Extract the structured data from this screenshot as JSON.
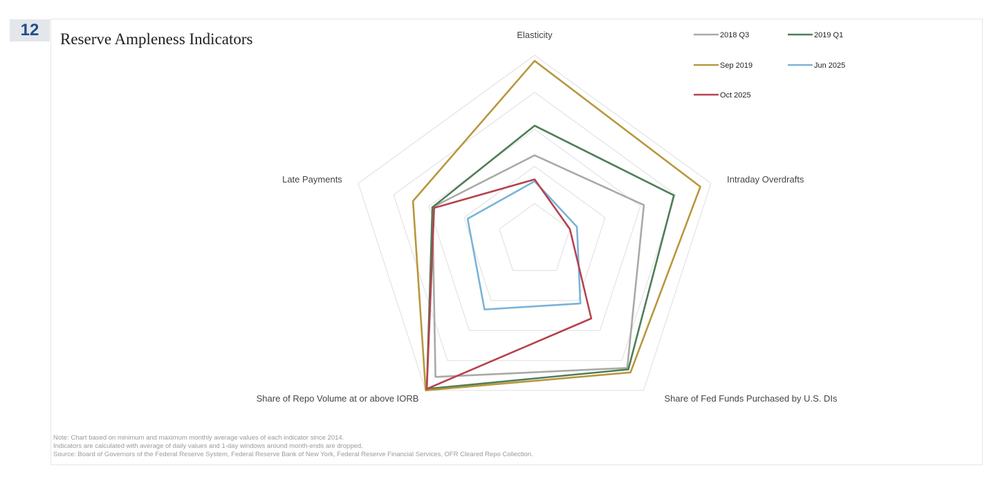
{
  "slide": {
    "number": "12",
    "title": "Reserve Ampleness Indicators"
  },
  "notes": [
    "Note: Chart based on minimum and maximum monthly average values of each indicator since 2014.",
    "Indicators are calculated with average of daily values and 1-day windows around month-ends are dropped.",
    "Source: Board of Governors of the Federal Reserve System, Federal Reserve Bank of New York, Federal Reserve Financial Services, OFR Cleared Repo Collection."
  ],
  "chart_data": {
    "type": "radar",
    "title": "Reserve Ampleness Indicators",
    "axes": [
      "Elasticity",
      "Intraday Overdrafts",
      "Share of Fed Funds Purchased by U.S. DIs",
      "Share of Repo Volume at or above IORB",
      "Late Payments"
    ],
    "range": [
      0,
      1
    ],
    "grid_levels": 5,
    "grid": true,
    "legend_position": "top-right",
    "series": [
      {
        "name": "2018 Q3",
        "color": "#a9aaa5",
        "values": [
          0.46,
          0.62,
          0.85,
          0.91,
          0.58
        ]
      },
      {
        "name": "2019 Q1",
        "color": "#4e7d57",
        "values": [
          0.62,
          0.79,
          0.86,
          0.99,
          0.58
        ]
      },
      {
        "name": "Sep 2019",
        "color": "#b8973c",
        "values": [
          0.97,
          0.94,
          0.88,
          1.0,
          0.69
        ]
      },
      {
        "name": "Jun 2025",
        "color": "#79b3d8",
        "values": [
          0.32,
          0.24,
          0.42,
          0.46,
          0.38
        ]
      },
      {
        "name": "Oct 2025",
        "color": "#b5434f",
        "values": [
          0.33,
          0.2,
          0.52,
          0.99,
          0.57
        ]
      }
    ]
  }
}
